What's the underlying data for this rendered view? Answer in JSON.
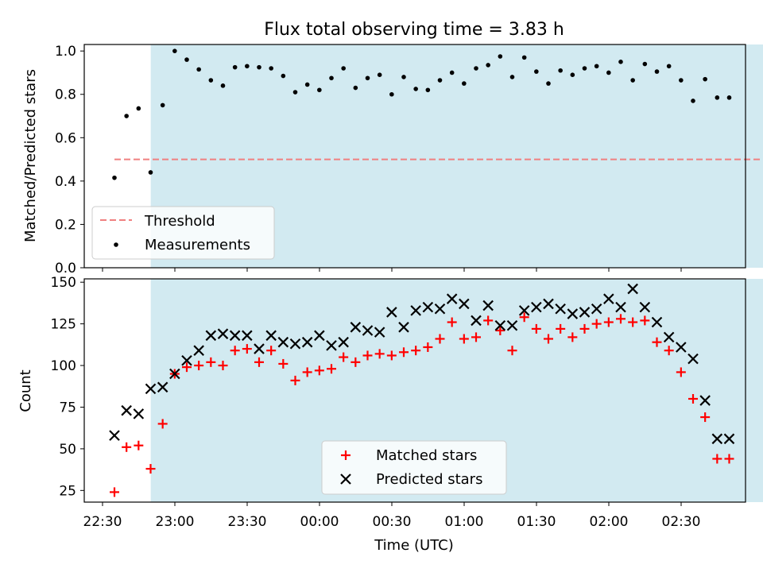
{
  "chart_data": [
    {
      "type": "scatter",
      "title": "Flux total observing time = 3.83 h",
      "ylabel": "Matched/Predicted stars",
      "xlabel": "",
      "ylim": [
        0,
        1.03
      ],
      "yticks": [
        "0.0",
        "0.2",
        "0.4",
        "0.6",
        "0.8",
        "1.0"
      ],
      "shaded_range": [
        "22:50",
        "03:20"
      ],
      "threshold": {
        "name": "Threshold",
        "value": 0.5,
        "color": "#f08080",
        "x": [
          "22:30",
          "03:20"
        ]
      },
      "legend": {
        "placement": "lower-left",
        "entries": [
          "Threshold",
          "Measurements"
        ]
      },
      "series": [
        {
          "name": "Measurements",
          "color": "#000000",
          "x": [
            "22:30",
            "22:35",
            "22:40",
            "22:45",
            "22:50",
            "22:55",
            "23:00",
            "23:05",
            "23:10",
            "23:15",
            "23:20",
            "23:25",
            "23:30",
            "23:35",
            "23:40",
            "23:45",
            "23:50",
            "23:55",
            "00:00",
            "00:05",
            "00:10",
            "00:15",
            "00:20",
            "00:25",
            "00:30",
            "00:35",
            "00:40",
            "00:45",
            "00:50",
            "00:55",
            "01:00",
            "01:05",
            "01:10",
            "01:15",
            "01:20",
            "01:25",
            "01:30",
            "01:35",
            "01:40",
            "01:45",
            "01:50",
            "01:55",
            "02:00",
            "02:05",
            "02:10",
            "02:15",
            "02:20",
            "02:25",
            "02:30",
            "02:35",
            "02:40",
            "02:45"
          ],
          "y": [
            0.415,
            0.7,
            0.735,
            0.44,
            0.75,
            1.0,
            0.96,
            0.915,
            0.865,
            0.84,
            0.925,
            0.93,
            0.925,
            0.92,
            0.885,
            0.81,
            0.845,
            0.82,
            0.875,
            0.92,
            0.83,
            0.875,
            0.89,
            0.8,
            0.88,
            0.825,
            0.82,
            0.865,
            0.9,
            0.85,
            0.92,
            0.935,
            0.975,
            0.88,
            0.97,
            0.905,
            0.85,
            0.91,
            0.89,
            0.92,
            0.93,
            0.9,
            0.95,
            0.865,
            0.94,
            0.905,
            0.93,
            0.865,
            0.77,
            0.87,
            0.785,
            0.785
          ]
        }
      ]
    },
    {
      "type": "scatter",
      "title": "",
      "ylabel": "Count",
      "xlabel": "Time (UTC)",
      "ylim": [
        18,
        152
      ],
      "yticks": [
        "25",
        "50",
        "75",
        "100",
        "125",
        "150"
      ],
      "xticks": [
        "22:30",
        "23:00",
        "23:30",
        "00:00",
        "00:30",
        "01:00",
        "01:30",
        "02:00",
        "02:30"
      ],
      "shaded_range": [
        "22:50",
        "03:20"
      ],
      "legend": {
        "placement": "lower-center",
        "entries": [
          "Matched stars",
          "Predicted stars"
        ]
      },
      "series": [
        {
          "name": "Matched stars",
          "marker": "plus",
          "color": "#ff0000",
          "x": [
            "22:30",
            "22:35",
            "22:40",
            "22:45",
            "22:50",
            "22:55",
            "23:00",
            "23:05",
            "23:10",
            "23:15",
            "23:20",
            "23:25",
            "23:30",
            "23:35",
            "23:40",
            "23:45",
            "23:50",
            "23:55",
            "00:00",
            "00:05",
            "00:10",
            "00:15",
            "00:20",
            "00:25",
            "00:30",
            "00:35",
            "00:40",
            "00:45",
            "00:50",
            "00:55",
            "01:00",
            "01:05",
            "01:10",
            "01:15",
            "01:20",
            "01:25",
            "01:30",
            "01:35",
            "01:40",
            "01:45",
            "01:50",
            "01:55",
            "02:00",
            "02:05",
            "02:10",
            "02:15",
            "02:20",
            "02:25",
            "02:30",
            "02:35",
            "02:40",
            "02:45"
          ],
          "y": [
            24,
            51,
            52,
            38,
            65,
            95,
            99,
            100,
            102,
            100,
            109,
            110,
            102,
            109,
            101,
            91,
            96,
            97,
            98,
            105,
            102,
            106,
            107,
            106,
            108,
            109,
            111,
            116,
            126,
            116,
            117,
            127,
            121,
            109,
            129,
            122,
            116,
            122,
            117,
            122,
            125,
            126,
            128,
            126,
            127,
            114,
            109,
            96,
            80,
            69,
            44,
            44
          ]
        },
        {
          "name": "Predicted stars",
          "marker": "x",
          "color": "#000000",
          "x": [
            "22:30",
            "22:35",
            "22:40",
            "22:45",
            "22:50",
            "22:55",
            "23:00",
            "23:05",
            "23:10",
            "23:15",
            "23:20",
            "23:25",
            "23:30",
            "23:35",
            "23:40",
            "23:45",
            "23:50",
            "23:55",
            "00:00",
            "00:05",
            "00:10",
            "00:15",
            "00:20",
            "00:25",
            "00:30",
            "00:35",
            "00:40",
            "00:45",
            "00:50",
            "00:55",
            "01:00",
            "01:05",
            "01:10",
            "01:15",
            "01:20",
            "01:25",
            "01:30",
            "01:35",
            "01:40",
            "01:45",
            "01:50",
            "01:55",
            "02:00",
            "02:05",
            "02:10",
            "02:15",
            "02:20",
            "02:25",
            "02:30",
            "02:35",
            "02:40",
            "02:45"
          ],
          "y": [
            58,
            73,
            71,
            86,
            87,
            95,
            103,
            109,
            118,
            119,
            118,
            118,
            110,
            118,
            114,
            113,
            114,
            118,
            112,
            114,
            123,
            121,
            120,
            132,
            123,
            133,
            135,
            134,
            140,
            137,
            127,
            136,
            124,
            124,
            133,
            135,
            137,
            134,
            131,
            132,
            134,
            140,
            135,
            146,
            135,
            126,
            117,
            111,
            104,
            79,
            56,
            56
          ]
        }
      ]
    }
  ]
}
